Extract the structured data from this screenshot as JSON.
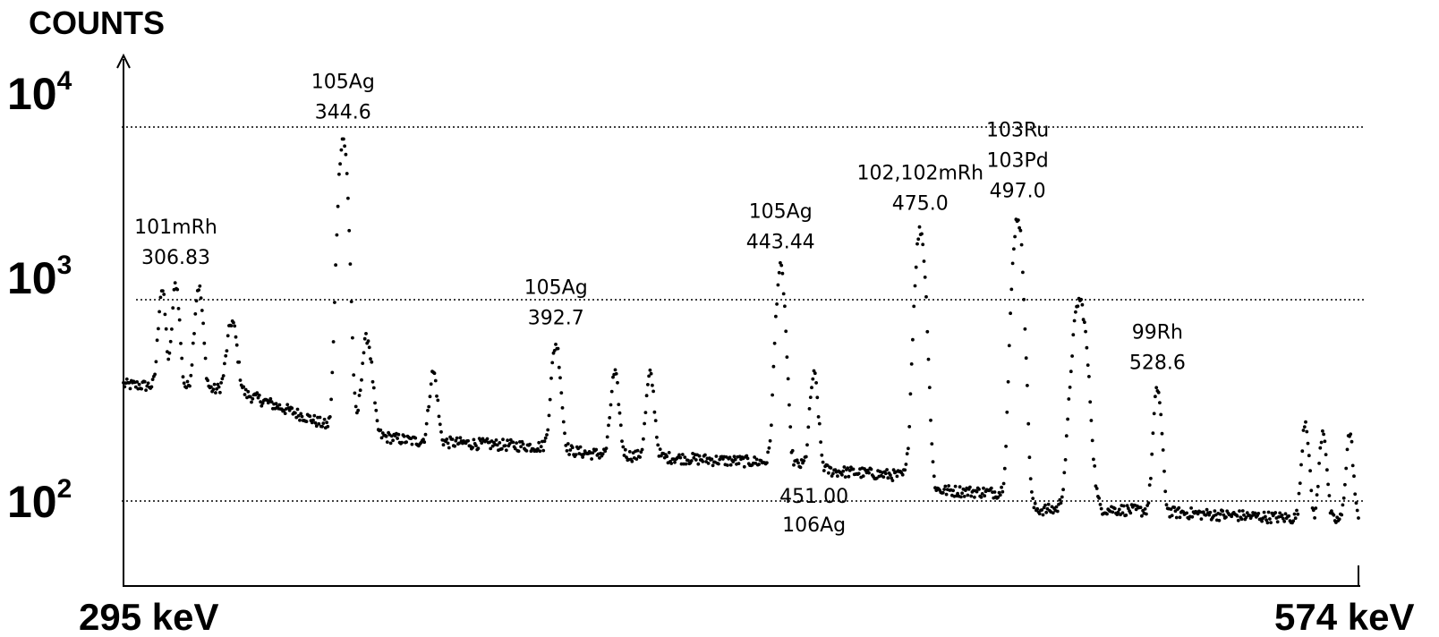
{
  "chart_data": {
    "type": "scatter",
    "title": "",
    "ylabel": "COUNTS",
    "xlabel": "",
    "x_start_label": "295 keV",
    "x_end_label": "574 keV",
    "xlim": [
      295,
      574
    ],
    "x_unit": "keV",
    "yscale": "log",
    "ylim": [
      50,
      12000
    ],
    "yticks": [
      {
        "value": 100,
        "base": "10",
        "exp": "2"
      },
      {
        "value": 1000,
        "base": "10",
        "exp": "3"
      },
      {
        "value": 10000,
        "base": "10",
        "exp": "4"
      }
    ],
    "grid": "dotted horizontal at decades",
    "background": [
      {
        "e": 295,
        "c": 420
      },
      {
        "e": 320,
        "c": 390
      },
      {
        "e": 330,
        "c": 320
      },
      {
        "e": 343,
        "c": 240
      },
      {
        "e": 360,
        "c": 210
      },
      {
        "e": 390,
        "c": 195
      },
      {
        "e": 400,
        "c": 180
      },
      {
        "e": 430,
        "c": 165
      },
      {
        "e": 445,
        "c": 160
      },
      {
        "e": 455,
        "c": 145
      },
      {
        "e": 474,
        "c": 135
      },
      {
        "e": 476,
        "c": 115
      },
      {
        "e": 496,
        "c": 110
      },
      {
        "e": 500,
        "c": 90
      },
      {
        "e": 520,
        "c": 90
      },
      {
        "e": 540,
        "c": 85
      },
      {
        "e": 574,
        "c": 78
      }
    ],
    "peaks": [
      {
        "e": 303.7,
        "c": 950,
        "w": 0.7
      },
      {
        "e": 306.83,
        "c": 1050,
        "w": 0.7
      },
      {
        "e": 312.0,
        "c": 1000,
        "w": 0.8
      },
      {
        "e": 319.5,
        "c": 520,
        "w": 1.0
      },
      {
        "e": 344.6,
        "c": 8500,
        "w": 0.9
      },
      {
        "e": 350.0,
        "c": 520,
        "w": 1.0
      },
      {
        "e": 365.0,
        "c": 280,
        "w": 0.8
      },
      {
        "e": 392.7,
        "c": 500,
        "w": 0.9
      },
      {
        "e": 406.0,
        "c": 300,
        "w": 0.8
      },
      {
        "e": 414.0,
        "c": 300,
        "w": 0.8
      },
      {
        "e": 443.44,
        "c": 1600,
        "w": 0.9
      },
      {
        "e": 451.0,
        "c": 320,
        "w": 0.8
      },
      {
        "e": 475.0,
        "c": 2700,
        "w": 1.0
      },
      {
        "e": 497.0,
        "c": 3200,
        "w": 1.0
      },
      {
        "e": 511.0,
        "c": 1100,
        "w": 1.4
      },
      {
        "e": 528.6,
        "c": 310,
        "w": 0.8
      },
      {
        "e": 562.0,
        "c": 190,
        "w": 0.7
      },
      {
        "e": 566.0,
        "c": 160,
        "w": 0.7
      },
      {
        "e": 572.0,
        "c": 150,
        "w": 0.7
      }
    ],
    "annotations": [
      {
        "nuclide": "101mRh",
        "energy": "306.83",
        "at_e": 306.83
      },
      {
        "nuclide": "105Ag",
        "energy": "344.6",
        "at_e": 344.6
      },
      {
        "nuclide": "105Ag",
        "energy": "392.7",
        "at_e": 392.7
      },
      {
        "nuclide": "105Ag",
        "energy": "443.44",
        "at_e": 443.44
      },
      {
        "nuclide": "102,102mRh",
        "energy": "475.0",
        "at_e": 475.0
      },
      {
        "nuclide": "103Ru\n103Pd",
        "energy": "497.0",
        "at_e": 497.0
      },
      {
        "nuclide": "99Rh",
        "energy": "528.6",
        "at_e": 528.6
      },
      {
        "nuclide": "106Ag",
        "energy": "451.00",
        "at_e": 451.0
      }
    ]
  }
}
